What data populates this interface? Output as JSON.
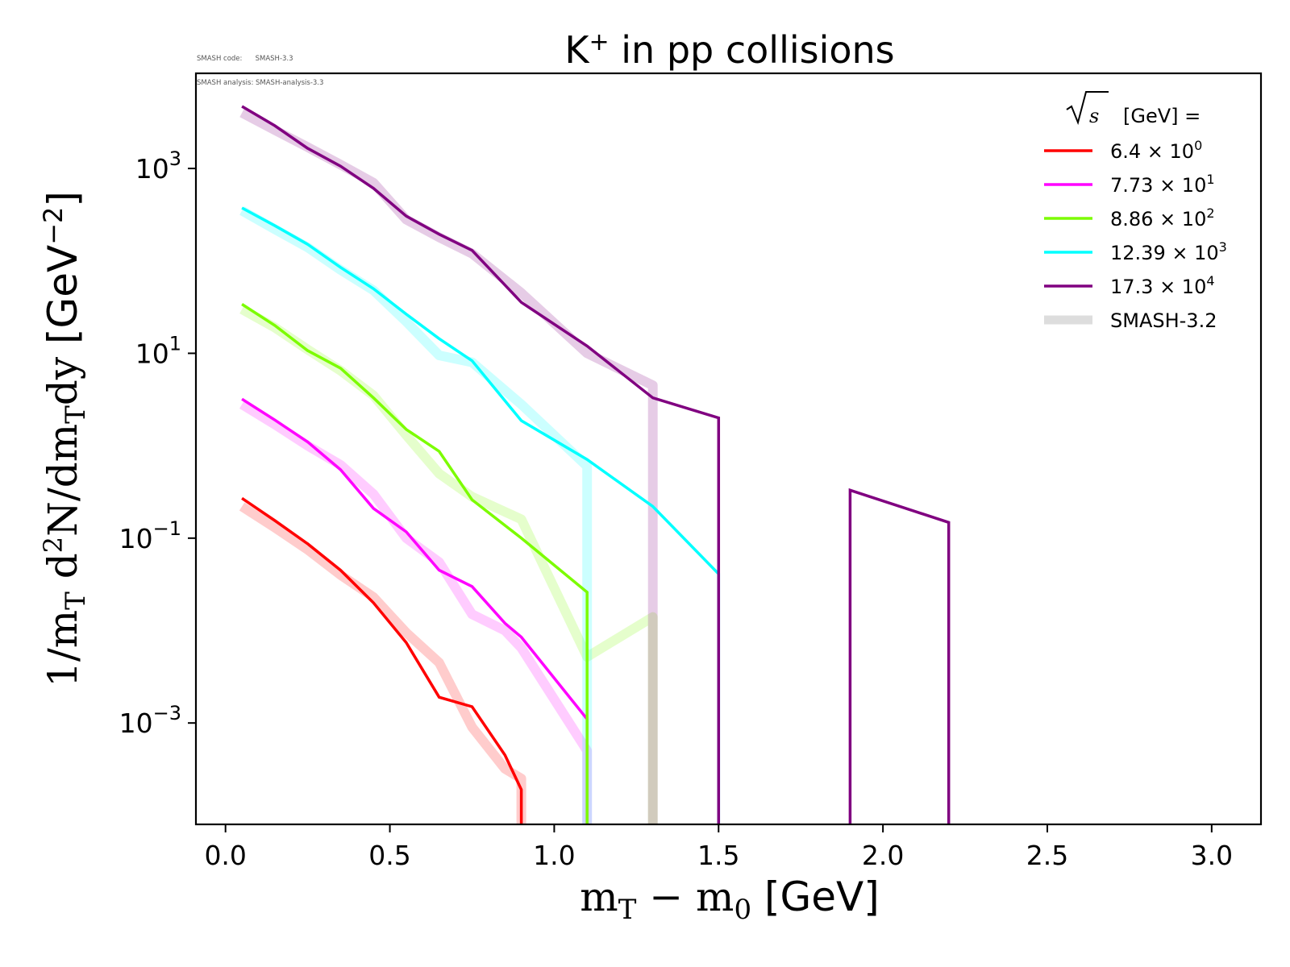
{
  "meta": {
    "code_line": "SMASH code:      SMASH-3.3",
    "analysis_line": "SMASH analysis: SMASH-analysis-3.3"
  },
  "chart_data": {
    "type": "line",
    "title": "K⁺ in pp collisions",
    "title_main": "K",
    "title_sup": "+",
    "title_rest": " in pp collisions",
    "xlabel": "m_T − m_0 [GeV]",
    "ylabel": "1/m_T d²N/dm_T dy [GeV⁻²]",
    "xscale": "linear",
    "yscale": "log",
    "xlim": [
      -0.09,
      3.15
    ],
    "ylim": [
      8e-05,
      10700.0
    ],
    "grid": false,
    "x_ticks": [
      {
        "value": 0.0,
        "label": "0.0"
      },
      {
        "value": 0.5,
        "label": "0.5"
      },
      {
        "value": 1.0,
        "label": "1.0"
      },
      {
        "value": 1.5,
        "label": "1.5"
      },
      {
        "value": 2.0,
        "label": "2.0"
      },
      {
        "value": 2.5,
        "label": "2.5"
      },
      {
        "value": 3.0,
        "label": "3.0"
      }
    ],
    "y_ticks": [
      {
        "value": 1000,
        "base": "10",
        "exp": "3"
      },
      {
        "value": 10,
        "base": "10",
        "exp": "1"
      },
      {
        "value": 0.1,
        "base": "10",
        "exp": "−1"
      },
      {
        "value": 0.001,
        "base": "10",
        "exp": "−3"
      }
    ],
    "legend": {
      "position": "upper-right",
      "title_prefix": "s",
      "title_suffix": "[GeV] =",
      "entries": [
        {
          "mantissa": "6.4",
          "exp": "0",
          "color": "#ff0000"
        },
        {
          "mantissa": "7.73",
          "exp": "1",
          "color": "#ff00ff"
        },
        {
          "mantissa": "8.86",
          "exp": "2",
          "color": "#7cfc00"
        },
        {
          "mantissa": "12.39",
          "exp": "3",
          "color": "#00ffff"
        },
        {
          "mantissa": "17.3",
          "exp": "4",
          "color": "#800080"
        },
        {
          "label": "SMASH-3.2",
          "color": "#dddddd",
          "reference": true
        }
      ]
    },
    "series": [
      {
        "name": "6.4 × 10^0",
        "color": "#ff0000",
        "drop_to_floor": true,
        "x": [
          0.05,
          0.15,
          0.25,
          0.35,
          0.45,
          0.55,
          0.65,
          0.75,
          0.85,
          0.9
        ],
        "y": [
          0.27,
          0.155,
          0.087,
          0.045,
          0.02,
          0.0074,
          0.0019,
          0.0015,
          0.00045,
          0.00019
        ],
        "reference": {
          "x": [
            0.05,
            0.15,
            0.25,
            0.35,
            0.45,
            0.55,
            0.65,
            0.75,
            0.85,
            0.9
          ],
          "y": [
            0.22,
            0.13,
            0.075,
            0.04,
            0.023,
            0.0095,
            0.0045,
            0.0009,
            0.00032,
            0.00025
          ]
        }
      },
      {
        "name": "7.73 × 10^1",
        "color": "#ff00ff",
        "drop_to_floor": true,
        "x": [
          0.05,
          0.15,
          0.25,
          0.35,
          0.45,
          0.55,
          0.65,
          0.75,
          0.85,
          0.9,
          1.1
        ],
        "y": [
          3.2,
          1.9,
          1.1,
          0.55,
          0.21,
          0.117,
          0.045,
          0.03,
          0.012,
          0.0085,
          0.0011
        ],
        "reference": {
          "x": [
            0.05,
            0.15,
            0.25,
            0.35,
            0.45,
            0.55,
            0.65,
            0.75,
            0.85,
            0.9,
            1.1
          ],
          "y": [
            2.8,
            1.7,
            1.0,
            0.62,
            0.3,
            0.1,
            0.055,
            0.015,
            0.01,
            0.0065,
            0.0005
          ]
        }
      },
      {
        "name": "8.86 × 10^2",
        "color": "#7cfc00",
        "drop_to_floor": true,
        "x": [
          0.05,
          0.15,
          0.25,
          0.35,
          0.45,
          0.55,
          0.65,
          0.75,
          0.9,
          1.1
        ],
        "y": [
          34,
          20,
          10.7,
          6.9,
          3.3,
          1.5,
          0.87,
          0.26,
          0.1,
          0.026
        ],
        "reference": {
          "x": [
            0.05,
            0.15,
            0.25,
            0.35,
            0.45,
            0.55,
            0.65,
            0.75,
            0.9,
            1.1,
            1.3
          ],
          "y": [
            30,
            19,
            11,
            6.5,
            3.5,
            1.3,
            0.5,
            0.28,
            0.16,
            0.0052,
            0.014
          ]
        }
      },
      {
        "name": "12.39 × 10^3",
        "color": "#00ffff",
        "drop_to_floor": true,
        "x": [
          0.05,
          0.15,
          0.25,
          0.35,
          0.45,
          0.55,
          0.65,
          0.75,
          0.9,
          1.1,
          1.3,
          1.5
        ],
        "y": [
          374,
          240,
          151,
          85,
          50,
          26.5,
          14.4,
          8.3,
          1.87,
          0.71,
          0.22,
          0.041
        ],
        "reference": {
          "x": [
            0.05,
            0.15,
            0.25,
            0.35,
            0.45,
            0.55,
            0.65,
            0.75,
            0.9,
            1.1
          ],
          "y": [
            350,
            220,
            140,
            80,
            48,
            22,
            9.5,
            8.0,
            2.8,
            0.6
          ]
        }
      },
      {
        "name": "17.3 × 10^4",
        "color": "#800080",
        "drop_to_floor": true,
        "segments": [
          {
            "x": [
              0.05,
              0.15,
              0.25,
              0.35,
              0.45,
              0.55,
              0.65,
              0.75,
              0.9,
              1.1,
              1.3,
              1.5
            ],
            "y": [
              4700,
              2900,
              1650,
              1060,
              610,
              305,
              194,
              130,
              35.6,
              12,
              3.3,
              2.0
            ]
          },
          {
            "x": [
              1.9,
              2.2
            ],
            "y": [
              0.33,
              0.148
            ]
          }
        ],
        "reference": {
          "x": [
            0.05,
            0.15,
            0.25,
            0.35,
            0.45,
            0.55,
            0.65,
            0.75,
            0.9,
            1.1,
            1.3
          ],
          "y": [
            4000,
            2600,
            1700,
            1100,
            700,
            280,
            180,
            120,
            45,
            10,
            4.5
          ]
        }
      }
    ]
  }
}
